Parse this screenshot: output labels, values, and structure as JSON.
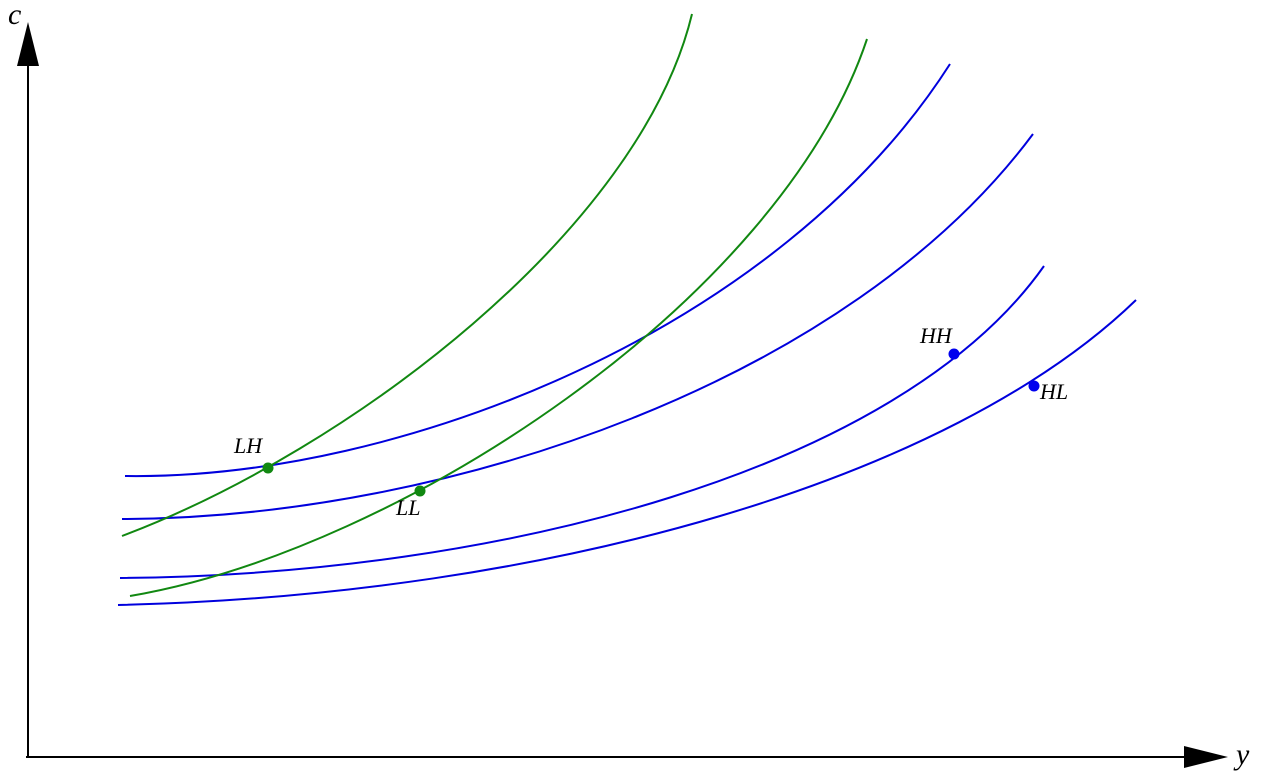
{
  "axes": {
    "y_label": "c",
    "x_label": "y"
  },
  "points": [
    {
      "label": "LH"
    },
    {
      "label": "LL"
    },
    {
      "label": "HH"
    },
    {
      "label": "HL"
    }
  ]
}
